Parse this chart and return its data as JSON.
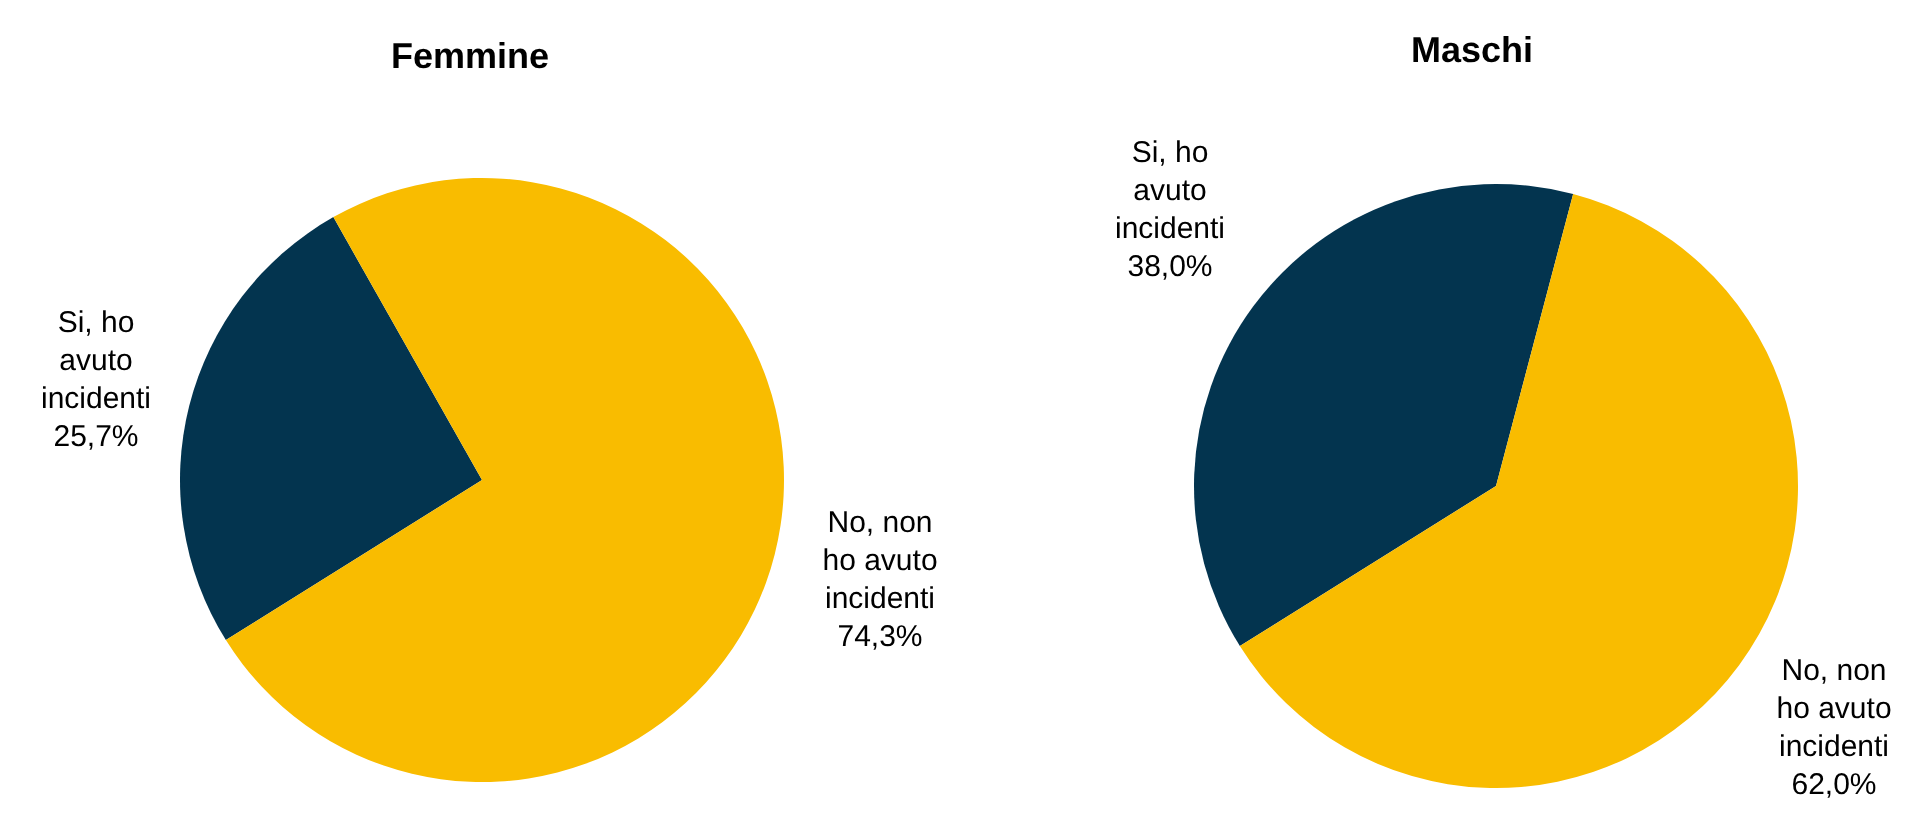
{
  "chart_data": [
    {
      "type": "pie",
      "title": "Femmine",
      "categories": [
        "Si, ho avuto incidenti",
        "No, non ho avuto incidenti"
      ],
      "values": [
        25.7,
        74.3
      ],
      "colors": [
        "#03344f",
        "#f9bc00"
      ],
      "value_labels": [
        "25,7%",
        "74,3%"
      ]
    },
    {
      "type": "pie",
      "title": "Maschi",
      "categories": [
        "Si, ho avuto incidenti",
        "No, non ho avuto incidenti"
      ],
      "values": [
        38.0,
        62.0
      ],
      "colors": [
        "#03344f",
        "#f9bc00"
      ],
      "value_labels": [
        "38,0%",
        "62,0%"
      ]
    }
  ]
}
